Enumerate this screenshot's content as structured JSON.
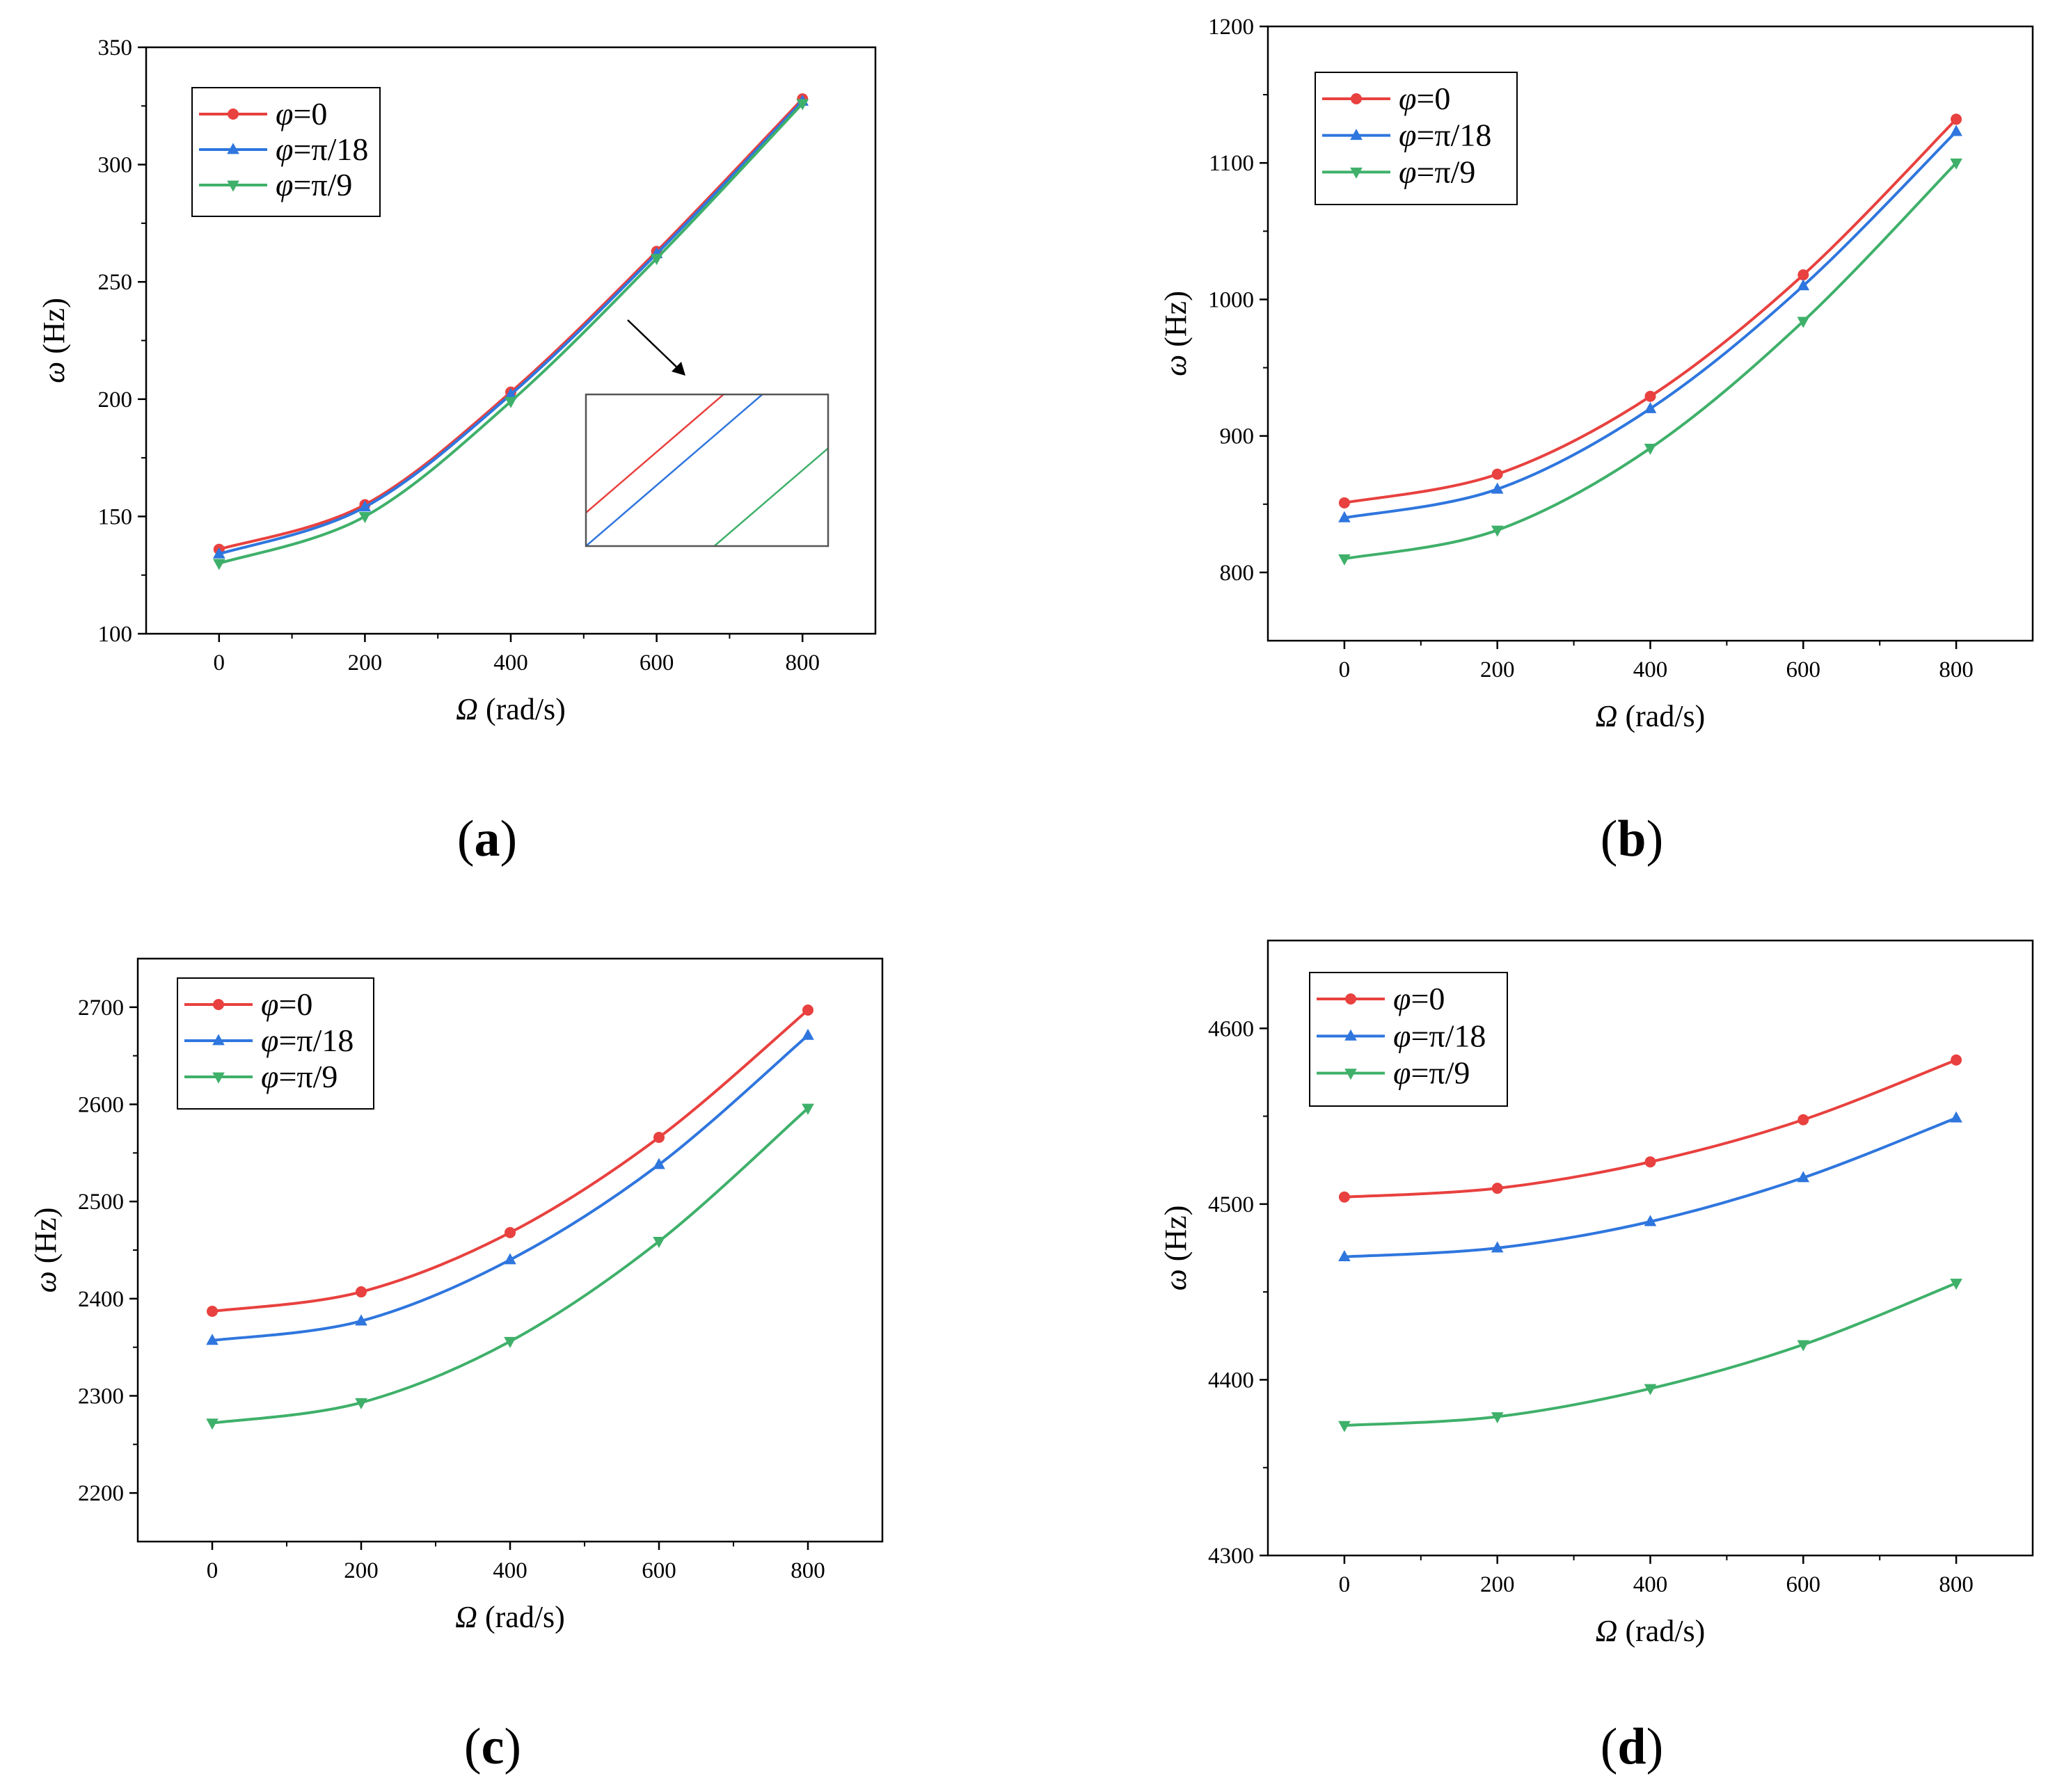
{
  "colors": {
    "red": "#e8413f",
    "blue": "#2f76de",
    "green": "#3fb06a",
    "inset_frame": "#555555"
  },
  "chart_data": [
    {
      "id": "a",
      "panel_label": "a",
      "type": "line",
      "xlabel_symbol": "Ω",
      "xlabel_unit": " (rad/s)",
      "ylabel_symbol": "ω",
      "ylabel_unit": " (Hz)",
      "x": [
        0,
        200,
        400,
        600,
        800
      ],
      "x_ticks": [
        0,
        200,
        400,
        600,
        800
      ],
      "xlim": [
        -100,
        900
      ],
      "ylim": [
        100,
        350
      ],
      "y_ticks": [
        100,
        150,
        200,
        250,
        300,
        350
      ],
      "legend_position": "top-left",
      "series": [
        {
          "symbol": "φ",
          "value": "=0",
          "color": "red",
          "marker": "circle",
          "values": [
            136,
            155,
            203,
            263,
            328
          ]
        },
        {
          "symbol": "φ",
          "value": "=π/18",
          "color": "blue",
          "marker": "triangle-up",
          "values": [
            134,
            154,
            202,
            262,
            327
          ]
        },
        {
          "symbol": "φ",
          "value": "=π/9",
          "color": "green",
          "marker": "triangle-down",
          "values": [
            130,
            150,
            199,
            260,
            326
          ]
        }
      ],
      "inset": {
        "description": "zoomed view",
        "arrow": true
      }
    },
    {
      "id": "b",
      "panel_label": "b",
      "type": "line",
      "xlabel_symbol": "Ω",
      "xlabel_unit": " (rad/s)",
      "ylabel_symbol": "ω",
      "ylabel_unit": " (Hz)",
      "x": [
        0,
        200,
        400,
        600,
        800
      ],
      "x_ticks": [
        0,
        200,
        400,
        600,
        800
      ],
      "xlim": [
        -100,
        900
      ],
      "ylim": [
        750,
        1200
      ],
      "y_ticks": [
        800,
        900,
        1000,
        1100,
        1200
      ],
      "legend_position": "top-left",
      "series": [
        {
          "symbol": "φ",
          "value": "=0",
          "color": "red",
          "marker": "circle",
          "values": [
            851,
            872,
            929,
            1018,
            1132
          ]
        },
        {
          "symbol": "φ",
          "value": "=π/18",
          "color": "blue",
          "marker": "triangle-up",
          "values": [
            840,
            861,
            920,
            1010,
            1123
          ]
        },
        {
          "symbol": "φ",
          "value": "=π/9",
          "color": "green",
          "marker": "triangle-down",
          "values": [
            810,
            831,
            891,
            984,
            1100
          ]
        }
      ]
    },
    {
      "id": "c",
      "panel_label": "c",
      "type": "line",
      "xlabel_symbol": "Ω",
      "xlabel_unit": " (rad/s)",
      "ylabel_symbol": "ω",
      "ylabel_unit": " (Hz)",
      "x": [
        0,
        200,
        400,
        600,
        800
      ],
      "x_ticks": [
        0,
        200,
        400,
        600,
        800
      ],
      "xlim": [
        -100,
        900
      ],
      "ylim": [
        2150,
        2750
      ],
      "y_ticks": [
        2200,
        2300,
        2400,
        2500,
        2600,
        2700
      ],
      "legend_position": "top-left",
      "series": [
        {
          "symbol": "φ",
          "value": "=0",
          "color": "red",
          "marker": "circle",
          "values": [
            2387,
            2407,
            2468,
            2566,
            2697
          ]
        },
        {
          "symbol": "φ",
          "value": "=π/18",
          "color": "blue",
          "marker": "triangle-up",
          "values": [
            2357,
            2377,
            2440,
            2538,
            2671
          ]
        },
        {
          "symbol": "φ",
          "value": "=π/9",
          "color": "green",
          "marker": "triangle-down",
          "values": [
            2272,
            2293,
            2356,
            2459,
            2596
          ]
        }
      ]
    },
    {
      "id": "d",
      "panel_label": "d",
      "type": "line",
      "xlabel_symbol": "Ω",
      "xlabel_unit": " (rad/s)",
      "ylabel_symbol": "ω",
      "ylabel_unit": " (Hz)",
      "x": [
        0,
        200,
        400,
        600,
        800
      ],
      "x_ticks": [
        0,
        200,
        400,
        600,
        800
      ],
      "xlim": [
        -100,
        900
      ],
      "ylim": [
        4300,
        4650
      ],
      "y_ticks": [
        4300,
        4400,
        4500,
        4600
      ],
      "legend_position": "top-left",
      "series": [
        {
          "symbol": "φ",
          "value": "=0",
          "color": "red",
          "marker": "circle",
          "values": [
            4504,
            4509,
            4524,
            4548,
            4582
          ]
        },
        {
          "symbol": "φ",
          "value": "=π/18",
          "color": "blue",
          "marker": "triangle-up",
          "values": [
            4470,
            4475,
            4490,
            4515,
            4549
          ]
        },
        {
          "symbol": "φ",
          "value": "=π/9",
          "color": "green",
          "marker": "triangle-down",
          "values": [
            4374,
            4379,
            4395,
            4420,
            4455
          ]
        }
      ]
    }
  ]
}
